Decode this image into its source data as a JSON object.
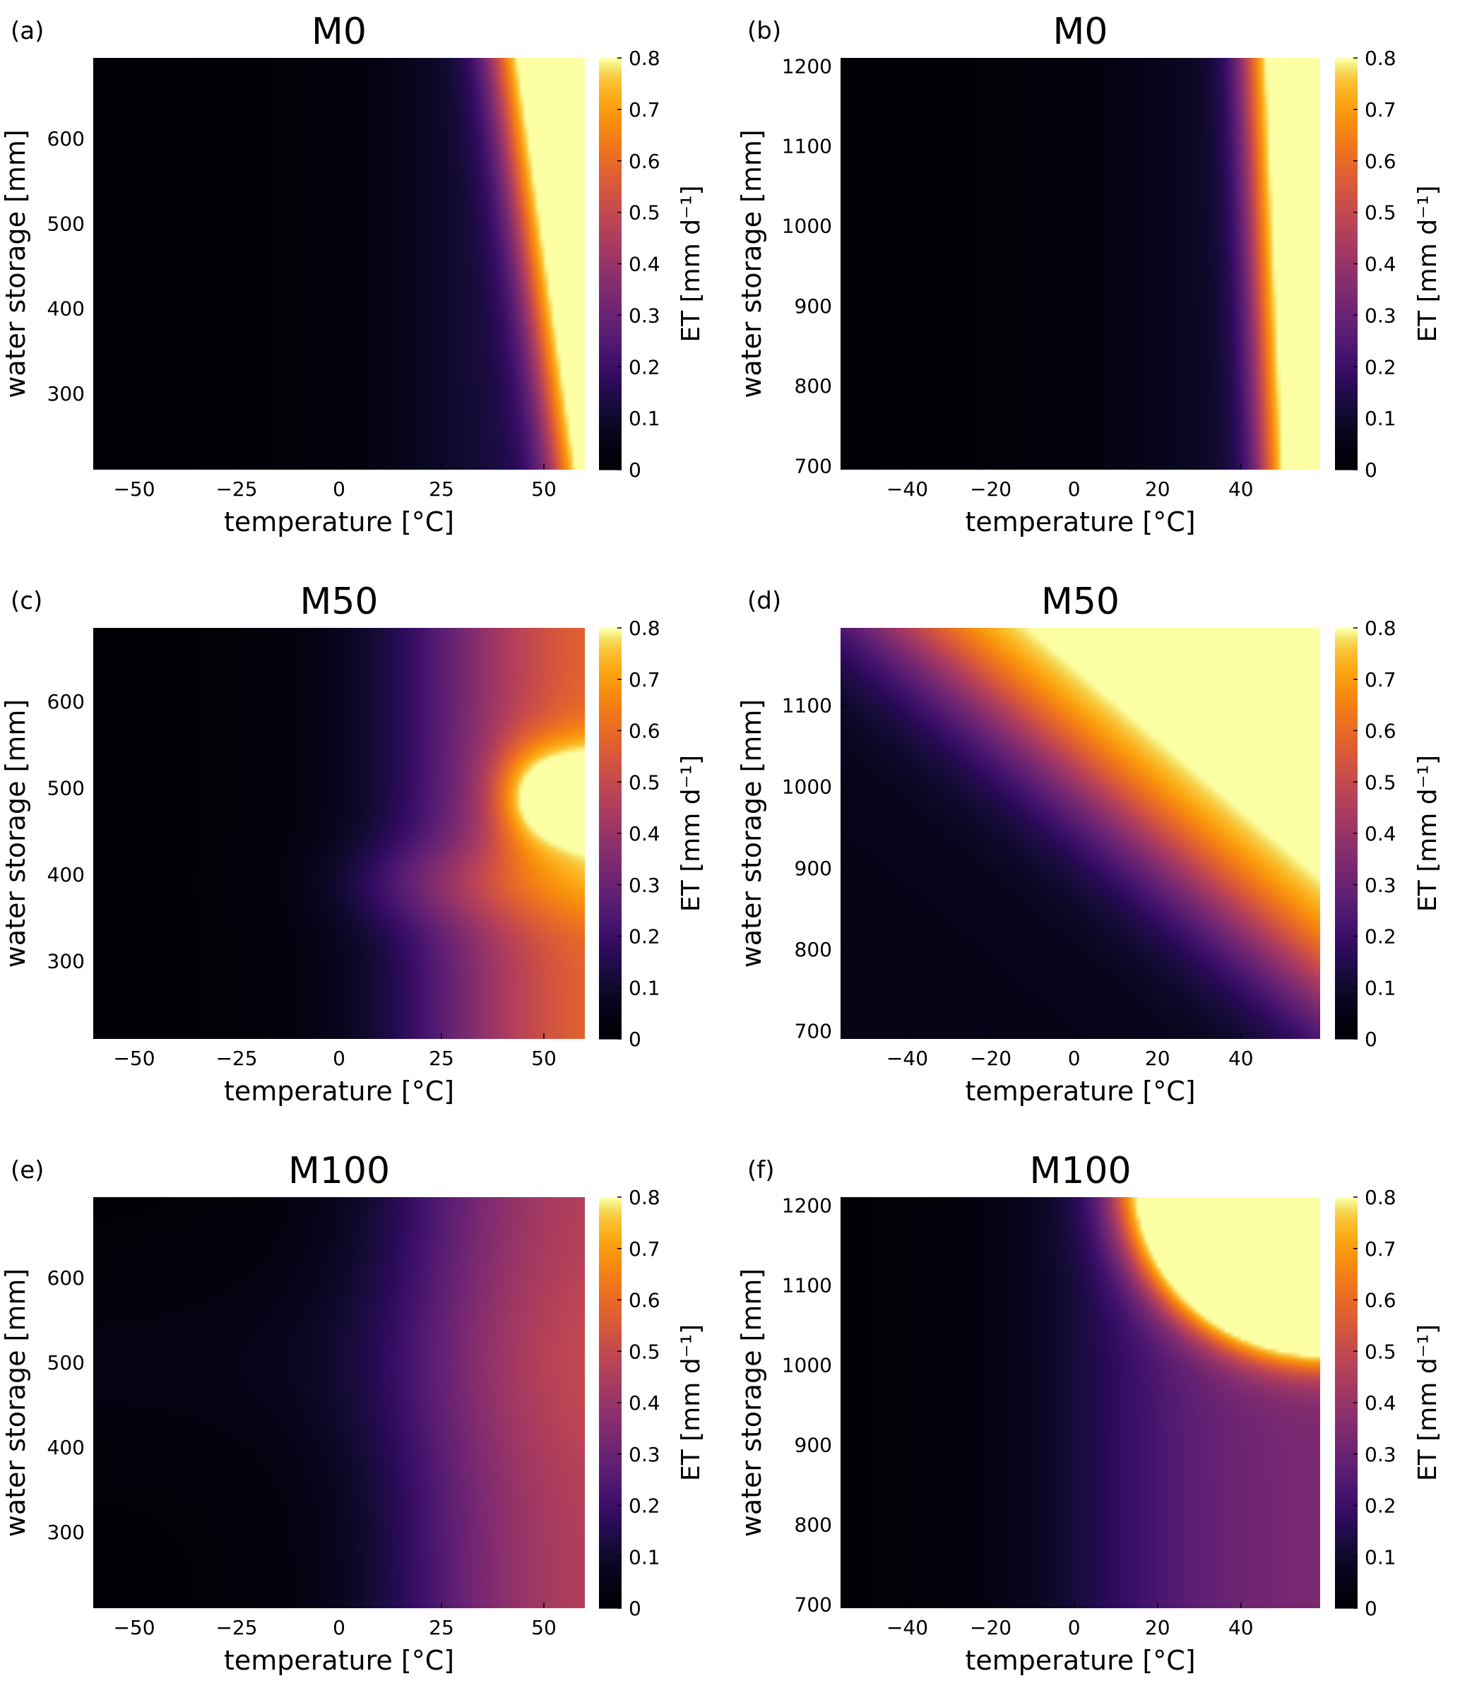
{
  "figure": {
    "colormap": "inferno",
    "colorbar_ticks": [
      "0",
      "0.1",
      "0.2",
      "0.3",
      "0.4",
      "0.5",
      "0.6",
      "0.7",
      "0.8"
    ]
  },
  "chart_data": [
    {
      "type": "heatmap",
      "panel": "(a)",
      "title": "M0",
      "xlabel": "temperature [°C]",
      "ylabel": "water storage [mm]",
      "colorbar_label": "ET [mm d⁻¹]",
      "xlim": [
        -60,
        60
      ],
      "ylim": [
        210,
        695
      ],
      "x_ticks": [
        -50,
        -25,
        0,
        25,
        50
      ],
      "x_tick_labels": [
        "−50",
        "−25",
        "0",
        "25",
        "50"
      ],
      "y_ticks": [
        300,
        400,
        500,
        600
      ],
      "y_tick_labels": [
        "300",
        "400",
        "500",
        "600"
      ],
      "clim": [
        0,
        0.8
      ],
      "pattern": "temperature-driven; ET rises steeply above ~30 °C and saturates (≥0.8) above ~45 °C, threshold shifting to higher T at low storage"
    },
    {
      "type": "heatmap",
      "panel": "(b)",
      "title": "M0",
      "xlabel": "temperature [°C]",
      "ylabel": "water storage [mm]",
      "colorbar_label": "ET [mm d⁻¹]",
      "xlim": [
        -56,
        59
      ],
      "ylim": [
        695,
        1210
      ],
      "x_ticks": [
        -40,
        -20,
        0,
        20,
        40
      ],
      "x_tick_labels": [
        "−40",
        "−20",
        "0",
        "20",
        "40"
      ],
      "y_ticks": [
        700,
        800,
        900,
        1000,
        1100,
        1200
      ],
      "y_tick_labels": [
        "700",
        "800",
        "900",
        "1000",
        "1100",
        "1200"
      ],
      "clim": [
        0,
        0.8
      ],
      "pattern": "temperature-driven; sharp transition near 45 °C, saturated above ~50 °C, nearly independent of storage"
    },
    {
      "type": "heatmap",
      "panel": "(c)",
      "title": "M50",
      "xlabel": "temperature [°C]",
      "ylabel": "water storage [mm]",
      "colorbar_label": "ET [mm d⁻¹]",
      "xlim": [
        -60,
        60
      ],
      "ylim": [
        210,
        685
      ],
      "x_ticks": [
        -50,
        -25,
        0,
        25,
        50
      ],
      "x_tick_labels": [
        "−50",
        "−25",
        "0",
        "25",
        "50"
      ],
      "y_ticks": [
        300,
        400,
        500,
        600
      ],
      "y_tick_labels": [
        "300",
        "400",
        "500",
        "600"
      ],
      "clim": [
        0,
        0.8
      ],
      "pattern": "ET increases with temperature; saturated wedge centred near 490 mm at 50–60 °C, secondary bulge near 400 mm"
    },
    {
      "type": "heatmap",
      "panel": "(d)",
      "title": "M50",
      "xlabel": "temperature [°C]",
      "ylabel": "water storage [mm]",
      "colorbar_label": "ET [mm d⁻¹]",
      "xlim": [
        -56,
        59
      ],
      "ylim": [
        690,
        1195
      ],
      "x_ticks": [
        -40,
        -20,
        0,
        20,
        40
      ],
      "x_tick_labels": [
        "−40",
        "−20",
        "0",
        "20",
        "40"
      ],
      "y_ticks": [
        700,
        800,
        900,
        1000,
        1100
      ],
      "y_tick_labels": [
        "700",
        "800",
        "900",
        "1000",
        "1100"
      ],
      "clim": [
        0,
        0.8
      ],
      "pattern": "diagonal gradient; ET rises with both temperature and storage, highest (≥0.8) at top-right corner"
    },
    {
      "type": "heatmap",
      "panel": "(e)",
      "title": "M100",
      "xlabel": "temperature [°C]",
      "ylabel": "water storage [mm]",
      "colorbar_label": "ET [mm d⁻¹]",
      "xlim": [
        -60,
        60
      ],
      "ylim": [
        210,
        695
      ],
      "x_ticks": [
        -50,
        -25,
        0,
        25,
        50
      ],
      "x_tick_labels": [
        "−50",
        "−25",
        "0",
        "25",
        "50"
      ],
      "y_ticks": [
        300,
        400,
        500,
        600
      ],
      "y_tick_labels": [
        "300",
        "400",
        "500",
        "600"
      ],
      "clim": [
        0,
        0.8
      ],
      "pattern": "smooth temperature gradient; maximum ~0.45–0.5 at 45–60 °C, mid storage"
    },
    {
      "type": "heatmap",
      "panel": "(f)",
      "title": "M100",
      "xlabel": "temperature [°C]",
      "ylabel": "water storage [mm]",
      "colorbar_label": "ET [mm d⁻¹]",
      "xlim": [
        -56,
        59
      ],
      "ylim": [
        695,
        1210
      ],
      "x_ticks": [
        -40,
        -20,
        0,
        20,
        40
      ],
      "x_tick_labels": [
        "−40",
        "−20",
        "0",
        "20",
        "40"
      ],
      "y_ticks": [
        700,
        800,
        900,
        1000,
        1100,
        1200
      ],
      "y_tick_labels": [
        "700",
        "800",
        "900",
        "1000",
        "1100",
        "1200"
      ],
      "clim": [
        0,
        0.8
      ],
      "pattern": "ET saturated in upper-right (T > ~15 °C and storage > ~1000 mm); elsewhere moderate, rising with temperature"
    }
  ]
}
